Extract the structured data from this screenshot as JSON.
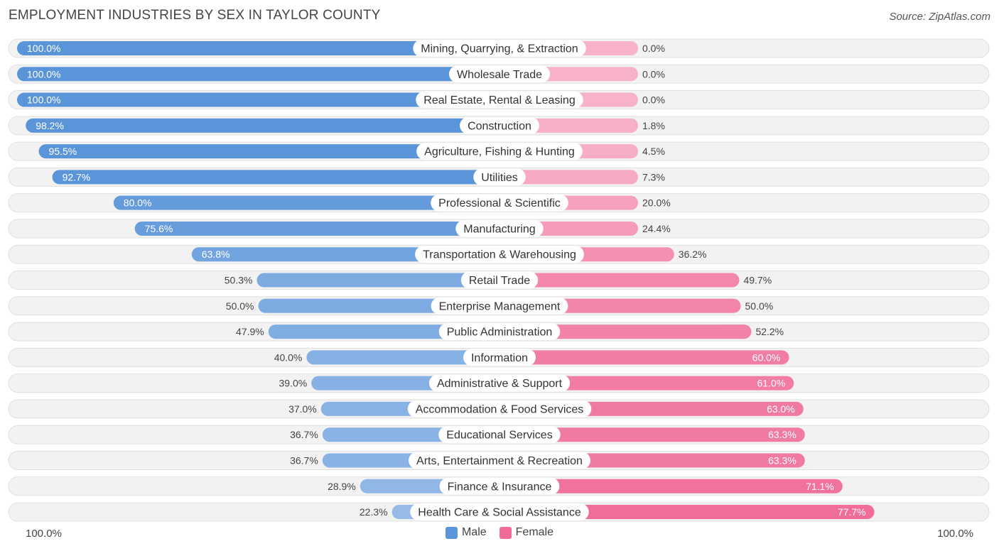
{
  "title": "EMPLOYMENT INDUSTRIES BY SEX IN TAYLOR COUNTY",
  "source": "Source: ZipAtlas.com",
  "axis": {
    "left_label": "100.0%",
    "right_label": "100.0%"
  },
  "legend": {
    "male_label": "Male",
    "female_label": "Female"
  },
  "colors": {
    "male_strong": "#5b95d9",
    "male_light": "#a9c7ec",
    "female_strong": "#f06b96",
    "female_light": "#f7b1c8",
    "track": "#f2f2f2",
    "track_border": "#e0e0e0"
  },
  "chart_data": {
    "type": "bar",
    "orientation": "horizontal-diverging",
    "title": "EMPLOYMENT INDUSTRIES BY SEX IN TAYLOR COUNTY",
    "xlim": [
      -100,
      100
    ],
    "series": [
      {
        "name": "Male",
        "values": [
          100.0,
          100.0,
          100.0,
          98.2,
          95.5,
          92.7,
          80.0,
          75.6,
          63.8,
          50.3,
          50.0,
          47.9,
          40.0,
          39.0,
          37.0,
          36.7,
          36.7,
          28.9,
          22.3
        ],
        "labels": [
          "100.0%",
          "100.0%",
          "100.0%",
          "98.2%",
          "95.5%",
          "92.7%",
          "80.0%",
          "75.6%",
          "63.8%",
          "50.3%",
          "50.0%",
          "47.9%",
          "40.0%",
          "39.0%",
          "37.0%",
          "36.7%",
          "36.7%",
          "28.9%",
          "22.3%"
        ]
      },
      {
        "name": "Female",
        "values": [
          0.0,
          0.0,
          0.0,
          1.8,
          4.5,
          7.3,
          20.0,
          24.4,
          36.2,
          49.7,
          50.0,
          52.2,
          60.0,
          61.0,
          63.0,
          63.3,
          63.3,
          71.1,
          77.7
        ],
        "labels": [
          "0.0%",
          "0.0%",
          "0.0%",
          "1.8%",
          "4.5%",
          "7.3%",
          "20.0%",
          "24.4%",
          "36.2%",
          "49.7%",
          "50.0%",
          "52.2%",
          "60.0%",
          "61.0%",
          "63.0%",
          "63.3%",
          "63.3%",
          "71.1%",
          "77.7%"
        ]
      }
    ],
    "categories": [
      "Mining, Quarrying, & Extraction",
      "Wholesale Trade",
      "Real Estate, Rental & Leasing",
      "Construction",
      "Agriculture, Fishing & Hunting",
      "Utilities",
      "Professional & Scientific",
      "Manufacturing",
      "Transportation & Warehousing",
      "Retail Trade",
      "Enterprise Management",
      "Public Administration",
      "Information",
      "Administrative & Support",
      "Accommodation & Food Services",
      "Educational Services",
      "Arts, Entertainment & Recreation",
      "Finance & Insurance",
      "Health Care & Social Assistance"
    ]
  }
}
